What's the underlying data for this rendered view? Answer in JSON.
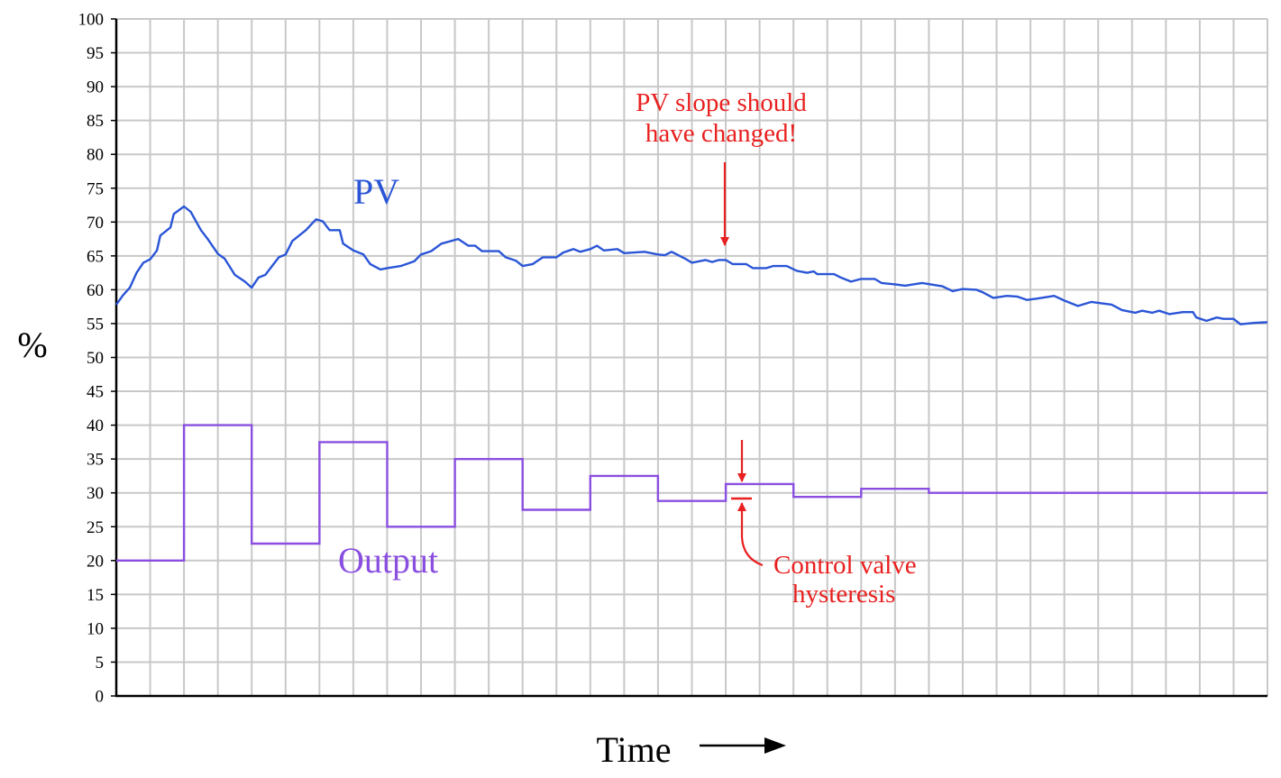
{
  "chart_data": {
    "type": "line",
    "ylabel": "%",
    "xlabel": "Time",
    "ylim": [
      0,
      100
    ],
    "yticks": [
      100,
      95,
      90,
      85,
      80,
      75,
      70,
      65,
      60,
      55,
      50,
      45,
      40,
      35,
      30,
      25,
      20,
      15,
      10,
      5,
      0
    ],
    "x_range": [
      0,
      17
    ],
    "grid": true,
    "colors": {
      "pv": "#2a55d6",
      "output": "#8a4fe0",
      "annotation": "#e8201f",
      "grid": "#c8c8c8"
    },
    "series": [
      {
        "name": "PV",
        "points": [
          [
            0,
            57.8
          ],
          [
            0.1,
            59.2
          ],
          [
            0.2,
            60.3
          ],
          [
            0.3,
            62.5
          ],
          [
            0.4,
            64
          ],
          [
            0.5,
            64.5
          ],
          [
            0.6,
            65.8
          ],
          [
            0.65,
            68
          ],
          [
            0.8,
            69.2
          ],
          [
            0.85,
            71.2
          ],
          [
            1,
            72.3
          ],
          [
            1.1,
            71.5
          ],
          [
            1.25,
            68.8
          ],
          [
            1.35,
            67.5
          ],
          [
            1.5,
            65.3
          ],
          [
            1.6,
            64.6
          ],
          [
            1.75,
            62.2
          ],
          [
            1.9,
            61.2
          ],
          [
            2,
            60.3
          ],
          [
            2.1,
            61.8
          ],
          [
            2.2,
            62.2
          ],
          [
            2.3,
            63.5
          ],
          [
            2.4,
            64.8
          ],
          [
            2.5,
            65.2
          ],
          [
            2.6,
            67.2
          ],
          [
            2.8,
            68.8
          ],
          [
            2.95,
            70.4
          ],
          [
            3.05,
            70.1
          ],
          [
            3.15,
            68.8
          ],
          [
            3.3,
            68.8
          ],
          [
            3.35,
            66.8
          ],
          [
            3.5,
            65.8
          ],
          [
            3.65,
            65.2
          ],
          [
            3.75,
            63.8
          ],
          [
            3.9,
            63
          ],
          [
            4,
            63.2
          ],
          [
            4.2,
            63.5
          ],
          [
            4.4,
            64.2
          ],
          [
            4.5,
            65.2
          ],
          [
            4.65,
            65.7
          ],
          [
            4.8,
            66.8
          ],
          [
            5.05,
            67.5
          ],
          [
            5.2,
            66.5
          ],
          [
            5.3,
            66.5
          ],
          [
            5.4,
            65.7
          ],
          [
            5.65,
            65.7
          ],
          [
            5.75,
            64.8
          ],
          [
            5.9,
            64.3
          ],
          [
            6,
            63.5
          ],
          [
            6.15,
            63.8
          ],
          [
            6.3,
            64.8
          ],
          [
            6.5,
            64.8
          ],
          [
            6.6,
            65.5
          ],
          [
            6.75,
            66
          ],
          [
            6.85,
            65.6
          ],
          [
            7,
            66
          ],
          [
            7.1,
            66.5
          ],
          [
            7.2,
            65.8
          ],
          [
            7.4,
            66
          ],
          [
            7.5,
            65.4
          ],
          [
            7.8,
            65.6
          ],
          [
            8,
            65.2
          ],
          [
            8.1,
            65.1
          ],
          [
            8.2,
            65.6
          ],
          [
            8.4,
            64.6
          ],
          [
            8.5,
            64
          ],
          [
            8.7,
            64.4
          ],
          [
            8.8,
            64.1
          ],
          [
            8.9,
            64.4
          ],
          [
            9,
            64.4
          ],
          [
            9.1,
            63.8
          ],
          [
            9.3,
            63.8
          ],
          [
            9.4,
            63.2
          ],
          [
            9.6,
            63.2
          ],
          [
            9.7,
            63.5
          ],
          [
            9.9,
            63.5
          ],
          [
            10.05,
            62.8
          ],
          [
            10.2,
            62.5
          ],
          [
            10.3,
            62.7
          ],
          [
            10.35,
            62.3
          ],
          [
            10.6,
            62.3
          ],
          [
            10.7,
            61.8
          ],
          [
            10.85,
            61.2
          ],
          [
            11,
            61.6
          ],
          [
            11.2,
            61.6
          ],
          [
            11.3,
            61
          ],
          [
            11.5,
            60.8
          ],
          [
            11.65,
            60.6
          ],
          [
            11.9,
            61
          ],
          [
            12.2,
            60.5
          ],
          [
            12.35,
            59.8
          ],
          [
            12.5,
            60.1
          ],
          [
            12.7,
            60
          ],
          [
            12.8,
            59.6
          ],
          [
            12.95,
            58.8
          ],
          [
            13.15,
            59.1
          ],
          [
            13.3,
            59
          ],
          [
            13.45,
            58.5
          ],
          [
            13.6,
            58.7
          ],
          [
            13.85,
            59.1
          ],
          [
            14,
            58.4
          ],
          [
            14.2,
            57.6
          ],
          [
            14.4,
            58.2
          ],
          [
            14.55,
            58
          ],
          [
            14.7,
            57.8
          ],
          [
            14.85,
            57
          ],
          [
            15.05,
            56.6
          ],
          [
            15.15,
            56.9
          ],
          [
            15.3,
            56.6
          ],
          [
            15.4,
            56.9
          ],
          [
            15.55,
            56.4
          ],
          [
            15.75,
            56.7
          ],
          [
            15.9,
            56.7
          ],
          [
            15.95,
            55.9
          ],
          [
            16.1,
            55.4
          ],
          [
            16.25,
            55.9
          ],
          [
            16.35,
            55.7
          ],
          [
            16.5,
            55.7
          ],
          [
            16.6,
            54.9
          ],
          [
            16.8,
            55.1
          ],
          [
            17,
            55.2
          ]
        ]
      },
      {
        "name": "Output",
        "steps": [
          [
            0,
            20
          ],
          [
            1,
            40
          ],
          [
            2,
            22.5
          ],
          [
            3,
            37.5
          ],
          [
            4,
            25
          ],
          [
            5,
            35
          ],
          [
            6,
            27.5
          ],
          [
            7,
            32.5
          ],
          [
            8,
            28.8
          ],
          [
            9,
            31.3
          ],
          [
            10,
            29.4
          ],
          [
            11,
            30.6
          ],
          [
            12,
            30
          ],
          [
            17,
            30
          ]
        ]
      }
    ],
    "annotations": [
      {
        "text_lines": [
          "PV slope should",
          "have changed!"
        ],
        "x": 9,
        "y": 64.4,
        "color": "#e8201f"
      },
      {
        "text_lines": [
          "Control valve",
          "hysteresis"
        ],
        "x": 9.3,
        "y_top": 31.3,
        "y_bottom": 28.8,
        "color": "#e8201f"
      }
    ]
  }
}
